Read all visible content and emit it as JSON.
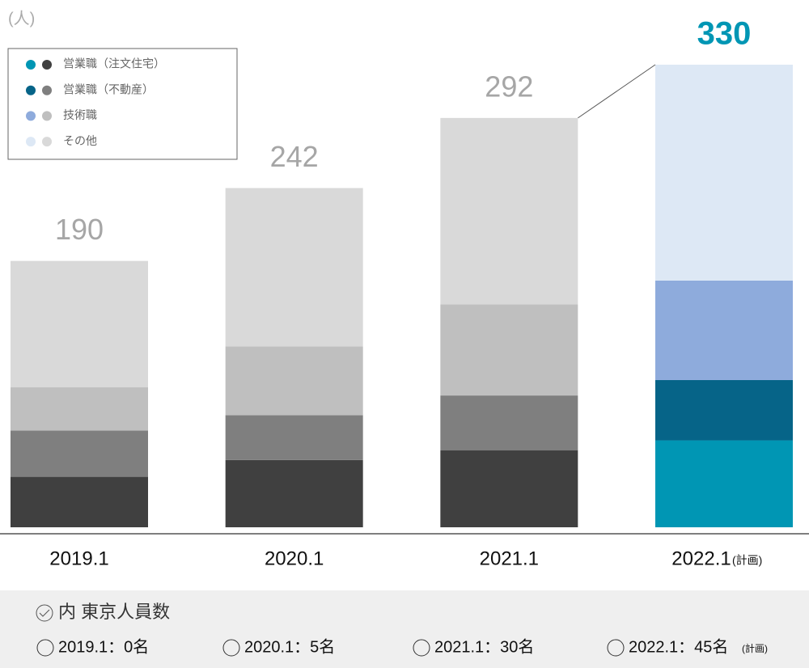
{
  "chart_data": {
    "type": "stacked_bar",
    "unit_label": "(人)",
    "categories": [
      "2019.1",
      "2020.1",
      "2021.1",
      "2022.1"
    ],
    "category_notes": [
      null,
      null,
      null,
      "(計画)"
    ],
    "series": [
      {
        "name": "営業職（注文住宅）",
        "colors": [
          "#404040",
          "#404040",
          "#404040",
          "#0096b4"
        ],
        "values": [
          36,
          48,
          55,
          62
        ]
      },
      {
        "name": "営業職（不動産）",
        "colors": [
          "#7f7f7f",
          "#7f7f7f",
          "#7f7f7f",
          "#066488"
        ],
        "values": [
          33,
          32,
          39,
          43
        ]
      },
      {
        "name": "技術職",
        "colors": [
          "#bfbfbf",
          "#bfbfbf",
          "#bfbfbf",
          "#8eabdc"
        ],
        "values": [
          31,
          49,
          65,
          71
        ]
      },
      {
        "name": "その他",
        "colors": [
          "#d9d9d9",
          "#d9d9d9",
          "#d9d9d9",
          "#dde8f5"
        ],
        "values": [
          90,
          113,
          133,
          154
        ]
      }
    ],
    "totals": [
      190,
      242,
      292,
      330
    ],
    "ylim": [
      0,
      330
    ]
  },
  "footer": {
    "title": "内 東京人員数",
    "items": [
      "2019.1：0名",
      "2020.1：5名",
      "2021.1：30名",
      "2022.1：45名"
    ],
    "item_notes": [
      null,
      null,
      null,
      "(計画)"
    ]
  }
}
